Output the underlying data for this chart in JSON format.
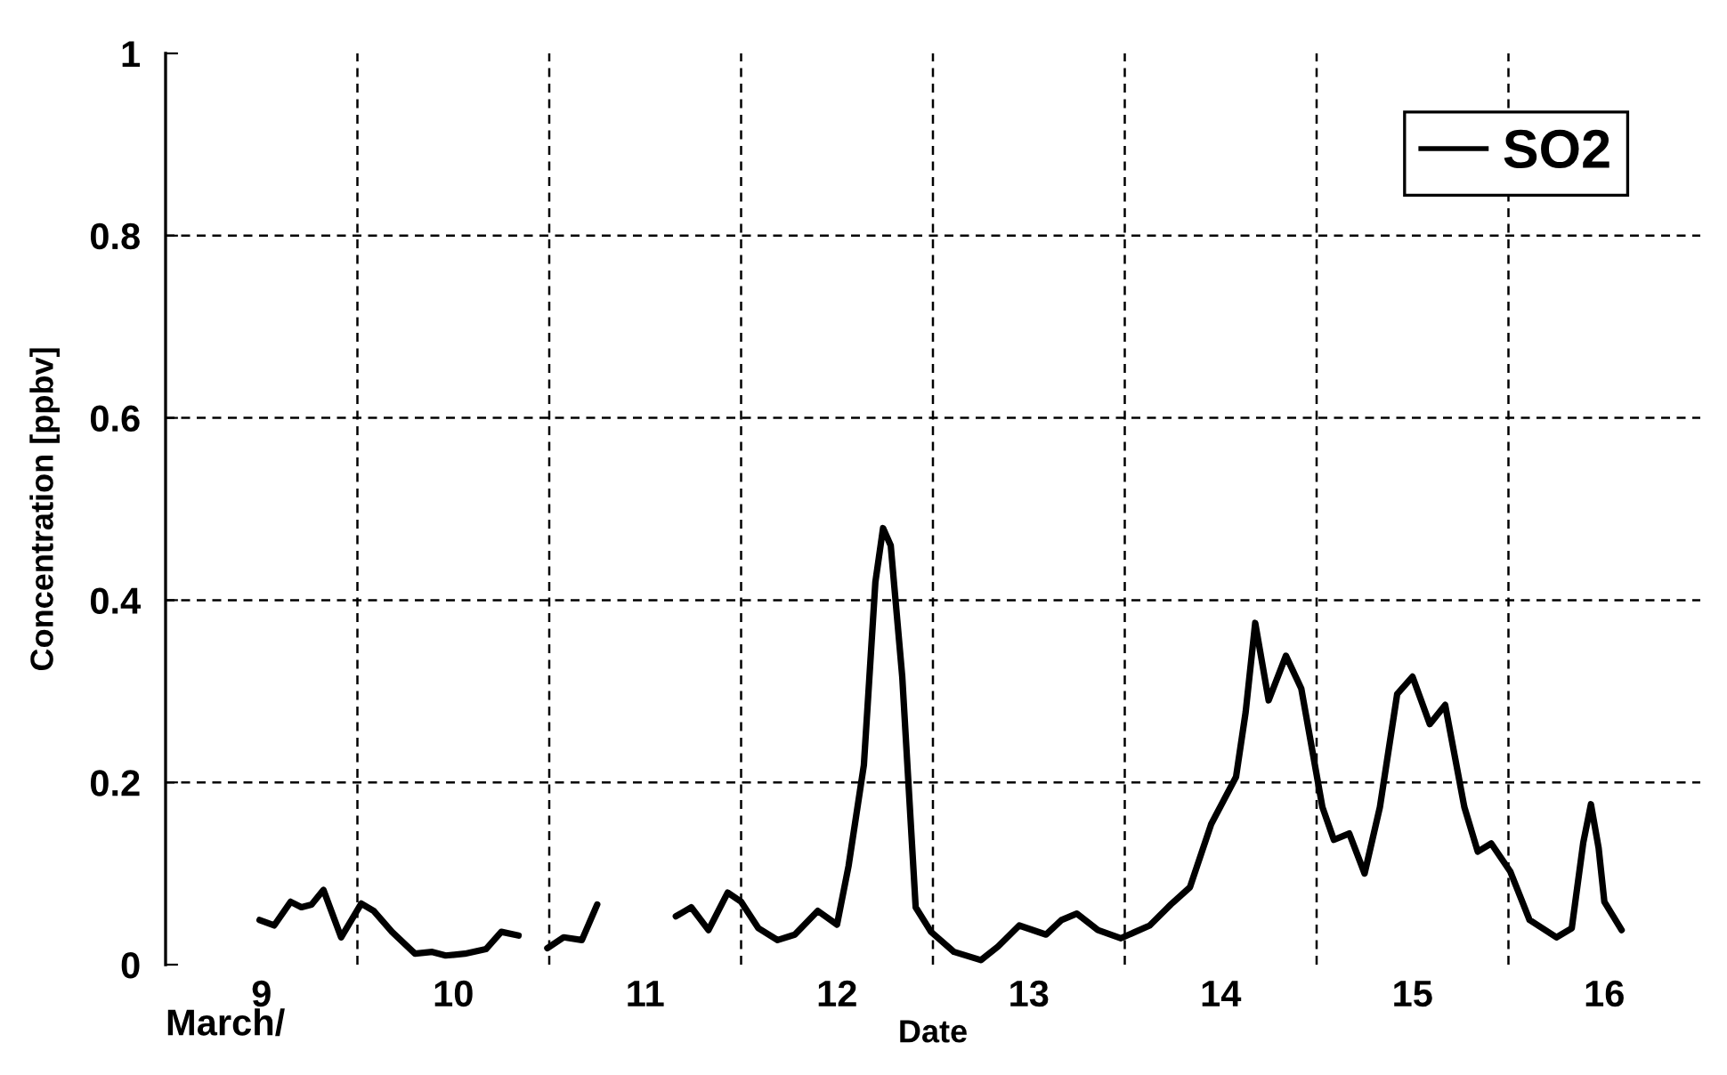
{
  "chart_data": {
    "type": "line",
    "xlabel": "Date",
    "ylabel": "Concentration [ppbv]",
    "annotations": [
      "March/"
    ],
    "x": [
      9.49,
      9.566,
      9.652,
      9.708,
      9.761,
      9.823,
      9.915,
      10.02,
      10.085,
      10.18,
      10.3,
      10.39,
      10.46,
      10.56,
      10.67,
      10.75,
      10.84,
      10.9,
      10.99,
      11.075,
      11.17,
      11.25,
      11.45,
      11.66,
      11.74,
      11.83,
      11.93,
      12.0,
      12.09,
      12.19,
      12.28,
      12.4,
      12.5,
      12.56,
      12.64,
      12.7,
      12.74,
      12.78,
      12.84,
      12.91,
      12.99,
      13.11,
      13.25,
      13.34,
      13.45,
      13.59,
      13.67,
      13.75,
      13.86,
      13.98,
      14.13,
      14.24,
      14.34,
      14.45,
      14.58,
      14.63,
      14.68,
      14.75,
      14.84,
      14.92,
      15.03,
      15.09,
      15.17,
      15.25,
      15.33,
      15.42,
      15.5,
      15.59,
      15.67,
      15.77,
      15.84,
      15.91,
      16.01,
      16.11,
      16.25,
      16.33,
      16.39,
      16.43,
      16.47,
      16.5,
      16.59
    ],
    "series": [
      {
        "name": "SO2",
        "color": "#000000",
        "values": [
          0.049,
          0.043,
          0.069,
          0.063,
          0.066,
          0.082,
          0.03,
          0.067,
          0.059,
          0.036,
          0.012,
          0.014,
          0.01,
          0.012,
          0.017,
          0.036,
          0.032,
          null,
          0.018,
          0.03,
          0.027,
          0.066,
          null,
          0.053,
          0.063,
          0.038,
          0.079,
          0.069,
          0.04,
          0.027,
          0.033,
          0.059,
          0.044,
          0.108,
          0.219,
          0.42,
          0.479,
          0.46,
          0.316,
          0.063,
          0.036,
          0.014,
          0.005,
          0.02,
          0.043,
          0.033,
          0.049,
          0.056,
          0.038,
          0.029,
          0.043,
          0.066,
          0.085,
          0.154,
          0.206,
          0.277,
          0.375,
          0.29,
          0.339,
          0.303,
          0.173,
          0.137,
          0.144,
          0.1,
          0.173,
          0.297,
          0.316,
          0.264,
          0.285,
          0.173,
          0.124,
          0.133,
          0.102,
          0.049,
          0.03,
          0.04,
          0.134,
          0.176,
          0.128,
          0.069,
          0.038
        ]
      }
    ],
    "xlim": [
      9,
      17
    ],
    "ylim": [
      0,
      1
    ],
    "xticks": [
      {
        "value": 9.5,
        "label": "9"
      },
      {
        "value": 10,
        "label": null
      },
      {
        "value": 10.5,
        "label": "10"
      },
      {
        "value": 11,
        "label": null
      },
      {
        "value": 11.5,
        "label": "11"
      },
      {
        "value": 12,
        "label": null
      },
      {
        "value": 12.5,
        "label": "12"
      },
      {
        "value": 13,
        "label": null
      },
      {
        "value": 13.5,
        "label": "13"
      },
      {
        "value": 14,
        "label": null
      },
      {
        "value": 14.5,
        "label": "14"
      },
      {
        "value": 15,
        "label": null
      },
      {
        "value": 15.5,
        "label": "15"
      },
      {
        "value": 16,
        "label": null
      },
      {
        "value": 16.5,
        "label": "16"
      }
    ],
    "yticks": [
      0,
      0.2,
      0.4,
      0.6,
      0.8,
      1
    ],
    "grid": true,
    "legend": "top right",
    "line_style": "solid",
    "marker": "none"
  }
}
